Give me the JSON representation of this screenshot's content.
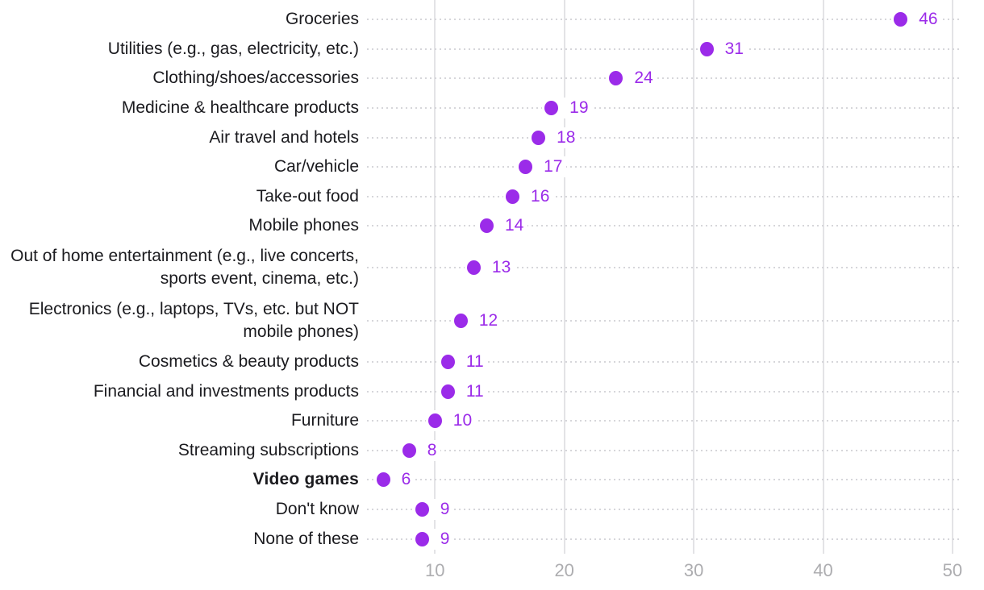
{
  "chart_data": {
    "type": "scatter",
    "variant": "dot-plot-horizontal",
    "title": "",
    "points": [
      {
        "label": "Groceries",
        "value": 46,
        "bold": false
      },
      {
        "label": "Utilities (e.g., gas, electricity, etc.)",
        "value": 31,
        "bold": false
      },
      {
        "label": "Clothing/shoes/accessories",
        "value": 24,
        "bold": false
      },
      {
        "label": "Medicine & healthcare products",
        "value": 19,
        "bold": false
      },
      {
        "label": "Air travel and hotels",
        "value": 18,
        "bold": false
      },
      {
        "label": "Car/vehicle",
        "value": 17,
        "bold": false
      },
      {
        "label": "Take-out food",
        "value": 16,
        "bold": false
      },
      {
        "label": "Mobile phones",
        "value": 14,
        "bold": false
      },
      {
        "label": "Out of home entertainment (e.g., live concerts, sports event, cinema, etc.)",
        "value": 13,
        "bold": false
      },
      {
        "label": "Electronics (e.g., laptops, TVs, etc. but NOT mobile phones)",
        "value": 12,
        "bold": false
      },
      {
        "label": "Cosmetics & beauty products",
        "value": 11,
        "bold": false
      },
      {
        "label": "Financial and investments products",
        "value": 11,
        "bold": false
      },
      {
        "label": "Furniture",
        "value": 10,
        "bold": false
      },
      {
        "label": "Streaming subscriptions",
        "value": 8,
        "bold": false
      },
      {
        "label": "Video games",
        "value": 6,
        "bold": true
      },
      {
        "label": "Don't know",
        "value": 9,
        "bold": false
      },
      {
        "label": "None of these",
        "value": 9,
        "bold": false
      }
    ],
    "x_ticks": [
      10,
      20,
      30,
      40,
      50
    ],
    "xlim": [
      0,
      52
    ],
    "grid": "vertical-solid-plus-dotted-row-leaders",
    "legend": "none",
    "xlabel": "",
    "ylabel": "",
    "colors": {
      "dot": "#9b2be9",
      "value_label": "#9b2be9",
      "category_label": "#1b1b1f",
      "tick_label": "#adadb0",
      "gridline": "#e3e3e6",
      "leader_dots": "#d6d6da",
      "background": "#ffffff"
    }
  }
}
